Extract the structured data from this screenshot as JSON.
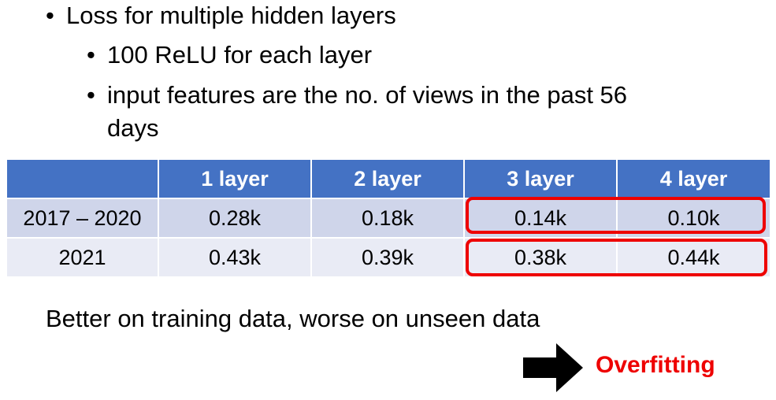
{
  "bullets": [
    {
      "marker": "•",
      "text": "Loss for multiple hidden layers"
    },
    {
      "marker": "•",
      "text": "100 ReLU for each layer"
    },
    {
      "marker": "•",
      "text": "input features are the no. of views in the past 56",
      "continuation": "days"
    }
  ],
  "table": {
    "headers": [
      "",
      "1 layer",
      "2 layer",
      "3 layer",
      "4 layer"
    ],
    "rows": [
      [
        "2017 – 2020",
        "0.28k",
        "0.18k",
        "0.14k",
        "0.10k"
      ],
      [
        "2021",
        "0.43k",
        "0.39k",
        "0.38k",
        "0.44k"
      ]
    ],
    "colors": {
      "header": "#4472c4",
      "row1": "#cfd5ea",
      "row2": "#e9ebf5",
      "highlight": "#ee0000"
    }
  },
  "conclusion": "Better on training data, worse on unseen data",
  "result": {
    "icon": "right-arrow-icon",
    "label": "Overfitting",
    "color": "#ee0000"
  }
}
